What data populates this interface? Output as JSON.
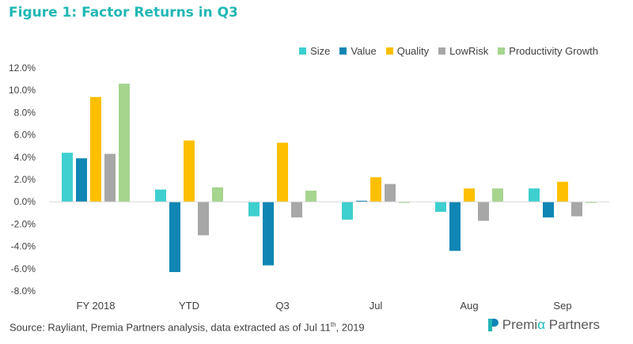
{
  "title": "Figure 1: Factor Returns in Q3",
  "footer": {
    "source_prefix": "Source: Rayliant, Premia Partners analysis, data extracted as of Jul 11",
    "source_sup": "th",
    "source_suffix": ", 2019"
  },
  "logo": {
    "text_a": "Premi",
    "text_b": "α",
    "text_c": " Partners"
  },
  "colors": {
    "title": "#21b7b5",
    "Size": "#3ecfcf",
    "Value": "#0f86b4",
    "Quality": "#fdbf00",
    "LowRisk": "#a7a7a7",
    "Productivity Growth": "#a6d58e"
  },
  "chart_data": {
    "type": "bar",
    "title": "Figure 1: Factor Returns in Q3",
    "categories": [
      "FY 2018",
      "YTD",
      "Q3",
      "Jul",
      "Aug",
      "Sep"
    ],
    "ylim": [
      -8.0,
      12.0
    ],
    "yticks": [
      "12.0%",
      "10.0%",
      "8.0%",
      "6.0%",
      "4.0%",
      "2.0%",
      "0.0%",
      "-2.0%",
      "-4.0%",
      "-6.0%",
      "-8.0%"
    ],
    "ytick_values": [
      12,
      10,
      8,
      6,
      4,
      2,
      0,
      -2,
      -4,
      -6,
      -8
    ],
    "legend_position": "top-right",
    "grid": false,
    "series": [
      {
        "name": "Size",
        "values": [
          4.4,
          1.1,
          -1.3,
          -1.6,
          -0.9,
          1.2
        ]
      },
      {
        "name": "Value",
        "values": [
          3.9,
          -6.3,
          -5.7,
          0.1,
          -4.4,
          -1.4
        ]
      },
      {
        "name": "Quality",
        "values": [
          9.4,
          5.5,
          5.3,
          2.2,
          1.2,
          1.8
        ]
      },
      {
        "name": "LowRisk",
        "values": [
          4.3,
          -3.0,
          -1.4,
          1.6,
          -1.7,
          -1.3
        ]
      },
      {
        "name": "Productivity Growth",
        "values": [
          10.6,
          1.3,
          1.0,
          -0.1,
          1.2,
          -0.1
        ]
      }
    ]
  }
}
